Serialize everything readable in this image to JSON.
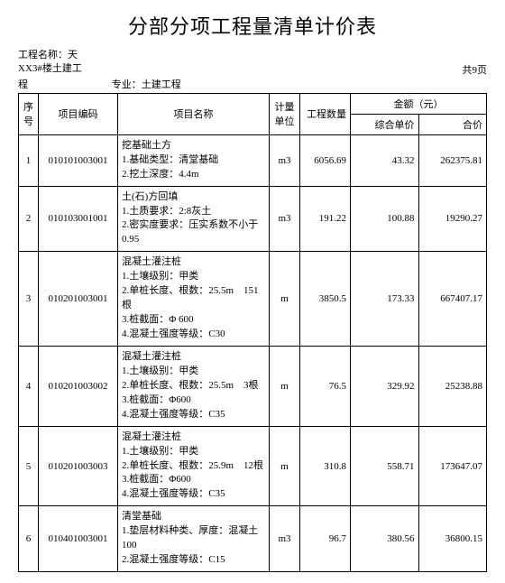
{
  "title": "分部分项工程量清单计价表",
  "project_label": "工程名称：",
  "project_name": "天XX3#楼土建工程",
  "spec_label": "专业：",
  "spec_name": "土建工程",
  "page_info": "共9页",
  "headers": {
    "seq": "序号",
    "code": "项目编码",
    "name": "项目名称",
    "unit": "计量单位",
    "qty": "工程数量",
    "amount": "金额（元）",
    "unit_price": "综合单价",
    "total": "合价"
  },
  "rows": [
    {
      "seq": "1",
      "code": "010101003001",
      "name": "挖基础土方\n1.基础类型：清堂基础\n2.挖土深度：4.4m",
      "unit": "m3",
      "qty": "6056.69",
      "unit_price": "43.32",
      "total": "262375.81"
    },
    {
      "seq": "2",
      "code": "010103001001",
      "name": "土(石)方回填\n1.土质要求：2:8灰土\n2.密实度要求：压实系数不小于0.95",
      "unit": "m3",
      "qty": "191.22",
      "unit_price": "100.88",
      "total": "19290.27"
    },
    {
      "seq": "3",
      "code": "010201003001",
      "name": "混凝土灌注桩\n1.土壤级别：甲类\n2.单桩长度、根数：25.5m　151根\n3.桩截面：Φ 600\n4.混凝土强度等级：C30",
      "unit": "m",
      "qty": "3850.5",
      "unit_price": "173.33",
      "total": "667407.17"
    },
    {
      "seq": "4",
      "code": "010201003002",
      "name": "混凝土灌注桩\n1.土壤级别：甲类\n2.单桩长度、根数：25.5m　3根\n3.桩截面：Φ600\n4.混凝土强度等级：C35",
      "unit": "m",
      "qty": "76.5",
      "unit_price": "329.92",
      "total": "25238.88"
    },
    {
      "seq": "5",
      "code": "010201003003",
      "name": "混凝土灌注桩\n1.土壤级别：甲类\n2.单桩长度、根数：25.9m　12根\n3.桩截面：Φ600\n4.混凝土强度等级：C35",
      "unit": "m",
      "qty": "310.8",
      "unit_price": "558.71",
      "total": "173647.07"
    },
    {
      "seq": "6",
      "code": "010401003001",
      "name": "清堂基础\n1.垫层材料种类、厚度：混凝土100\n2.混凝土强度等级：C15",
      "unit": "m3",
      "qty": "96.7",
      "unit_price": "380.56",
      "total": "36800.15"
    }
  ],
  "colors": {
    "background": "#ffffff",
    "text": "#000000",
    "border": "#000000"
  }
}
